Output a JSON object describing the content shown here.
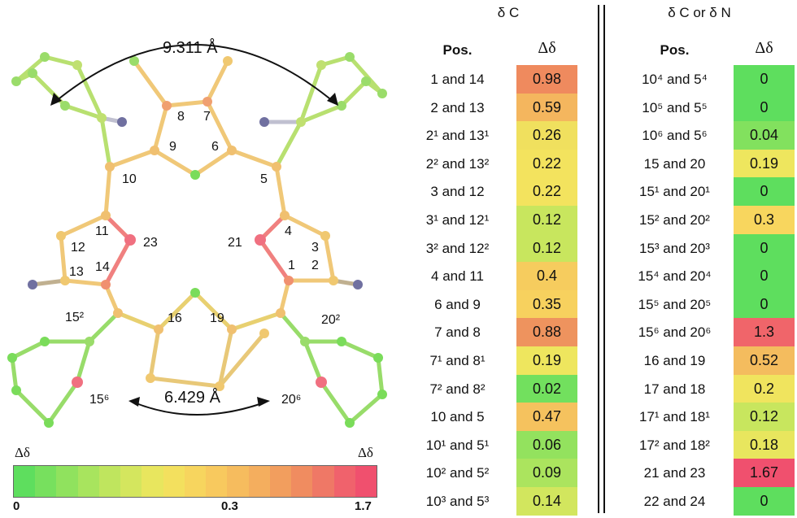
{
  "figure": {
    "distance_top": "9.311 Å",
    "distance_bottom": "6.429 Å",
    "atom_labels": [
      {
        "text": "8"
      },
      {
        "text": "7"
      },
      {
        "text": "9"
      },
      {
        "text": "6"
      },
      {
        "text": "10"
      },
      {
        "text": "5"
      },
      {
        "text": "11"
      },
      {
        "text": "12"
      },
      {
        "text": "13"
      },
      {
        "text": "14"
      },
      {
        "text": "23"
      },
      {
        "text": "21"
      },
      {
        "text": "4"
      },
      {
        "text": "3"
      },
      {
        "text": "1"
      },
      {
        "text": "2"
      },
      {
        "text": "16"
      },
      {
        "text": "19"
      },
      {
        "text": "15²"
      },
      {
        "text": "20²"
      },
      {
        "text": "15⁶"
      },
      {
        "text": "20⁶"
      }
    ]
  },
  "table_left": {
    "title": "δ C",
    "col_pos": "Pos.",
    "col_delta": "Δδ",
    "rows": [
      {
        "pos": "1 and 14",
        "value": "0.98",
        "color": "#ef8a5e"
      },
      {
        "pos": "2 and 13",
        "value": "0.59",
        "color": "#f4b65e"
      },
      {
        "pos": "2¹ and 13¹",
        "value": "0.26",
        "color": "#f0e05e"
      },
      {
        "pos": "2² and 13²",
        "value": "0.22",
        "color": "#f3e35e"
      },
      {
        "pos": "3 and 12",
        "value": "0.22",
        "color": "#f3e35e"
      },
      {
        "pos": "3¹ and 12¹",
        "value": "0.12",
        "color": "#c8e65e"
      },
      {
        "pos": "3² and 12²",
        "value": "0.12",
        "color": "#c8e65e"
      },
      {
        "pos": "4 and 11",
        "value": "0.4",
        "color": "#f6cc5e"
      },
      {
        "pos": "6 and 9",
        "value": "0.35",
        "color": "#f7d15e"
      },
      {
        "pos": "7 and 8",
        "value": "0.88",
        "color": "#ee935e"
      },
      {
        "pos": "7¹ and 8¹",
        "value": "0.19",
        "color": "#eee65e"
      },
      {
        "pos": "7² and 8²",
        "value": "0.02",
        "color": "#72e05e"
      },
      {
        "pos": "10 and 5",
        "value": "0.47",
        "color": "#f5c25e"
      },
      {
        "pos": "10¹ and 5¹",
        "value": "0.06",
        "color": "#93e25e"
      },
      {
        "pos": "10² and 5²",
        "value": "0.09",
        "color": "#abe45e"
      },
      {
        "pos": "10³ and 5³",
        "value": "0.14",
        "color": "#d2e65e"
      }
    ]
  },
  "table_right": {
    "title": "δ C or δ N",
    "col_pos": "Pos.",
    "col_delta": "Δδ",
    "rows": [
      {
        "pos": "10⁴ and 5⁴",
        "value": "0",
        "color": "#5ede5e"
      },
      {
        "pos": "10⁵ and 5⁵",
        "value": "0",
        "color": "#5ede5e"
      },
      {
        "pos": "10⁶ and 5⁶",
        "value": "0.04",
        "color": "#82e15e"
      },
      {
        "pos": "15 and 20",
        "value": "0.19",
        "color": "#eee65e"
      },
      {
        "pos": "15¹ and 20¹",
        "value": "0",
        "color": "#5ede5e"
      },
      {
        "pos": "15² and 20²",
        "value": "0.3",
        "color": "#f8d65e"
      },
      {
        "pos": "15³ and 20³",
        "value": "0",
        "color": "#5ede5e"
      },
      {
        "pos": "15⁴ and 20⁴",
        "value": "0",
        "color": "#5ede5e"
      },
      {
        "pos": "15⁵ and 20⁵",
        "value": "0",
        "color": "#5ede5e"
      },
      {
        "pos": "15⁶ and 20⁶",
        "value": "1.3",
        "color": "#f0656a"
      },
      {
        "pos": "16 and 19",
        "value": "0.52",
        "color": "#f4bc5e"
      },
      {
        "pos": "17 and 18",
        "value": "0.2",
        "color": "#f0e45e"
      },
      {
        "pos": "17¹ and 18¹",
        "value": "0.12",
        "color": "#c8e65e"
      },
      {
        "pos": "17² and 18²",
        "value": "0.18",
        "color": "#e8e65e"
      },
      {
        "pos": "21 and 23",
        "value": "1.67",
        "color": "#f0506e"
      },
      {
        "pos": "22 and 24",
        "value": "0",
        "color": "#5ede5e"
      }
    ]
  },
  "scale": {
    "label_left": "Δδ",
    "label_right": "Δδ",
    "tick_min": "0",
    "tick_mid": "0.3",
    "tick_max": "1.7",
    "colors": [
      "#5ede5e",
      "#77e05e",
      "#90e25e",
      "#a8e45e",
      "#bfe55e",
      "#d4e65e",
      "#e8e65e",
      "#f3e05e",
      "#f7d55e",
      "#f8c95e",
      "#f6bc5e",
      "#f4ae5e",
      "#f29e5e",
      "#f08c60",
      "#ef7866",
      "#f0626c",
      "#f0506e"
    ]
  }
}
